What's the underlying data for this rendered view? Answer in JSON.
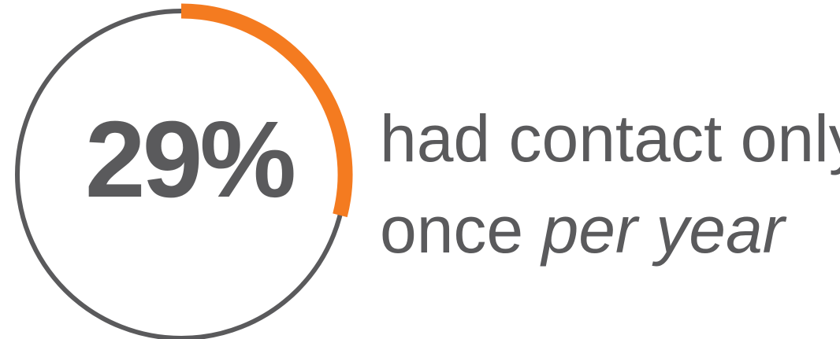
{
  "stat": {
    "percent_label": "29%",
    "fraction": 0.29,
    "caption_line1": "had contact only",
    "caption_line2_plain": "once ",
    "caption_line2_italic": "per year"
  },
  "colors": {
    "ring": "#5a5a5c",
    "progress": "#f47b20",
    "text": "#5a5a5c"
  }
}
